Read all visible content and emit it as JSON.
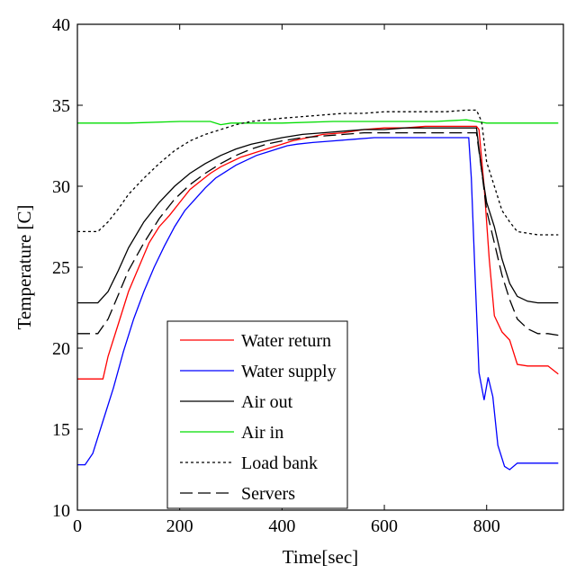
{
  "chart_data": {
    "type": "line",
    "title": "",
    "xlabel": "Time[sec]",
    "ylabel": "Temperature [C]",
    "xlim": [
      0,
      950
    ],
    "ylim": [
      10,
      40
    ],
    "xticks": [
      0,
      200,
      400,
      600,
      800
    ],
    "yticks": [
      10,
      15,
      20,
      25,
      30,
      35,
      40
    ],
    "grid": false,
    "legend_position": "lower-center",
    "series": [
      {
        "name": "Water return",
        "color": "#ff0000",
        "dash": "solid",
        "x": [
          0,
          50,
          60,
          80,
          100,
          120,
          140,
          160,
          180,
          200,
          220,
          240,
          260,
          280,
          300,
          320,
          340,
          360,
          380,
          400,
          420,
          450,
          480,
          520,
          560,
          600,
          640,
          680,
          720,
          760,
          780,
          785,
          795,
          805,
          815,
          830,
          845,
          860,
          880,
          900,
          920,
          940
        ],
        "y": [
          18.1,
          18.1,
          19.5,
          21.5,
          23.5,
          25.0,
          26.5,
          27.5,
          28.2,
          29.0,
          29.8,
          30.3,
          30.8,
          31.2,
          31.5,
          31.8,
          32.0,
          32.2,
          32.4,
          32.6,
          32.8,
          33.0,
          33.2,
          33.3,
          33.5,
          33.6,
          33.6,
          33.7,
          33.7,
          33.7,
          33.7,
          33.5,
          30.0,
          25.5,
          22.0,
          21.0,
          20.5,
          19.0,
          18.9,
          18.9,
          18.9,
          18.4
        ]
      },
      {
        "name": "Water supply",
        "color": "#0000ff",
        "dash": "solid",
        "x": [
          0,
          15,
          30,
          50,
          70,
          90,
          110,
          130,
          150,
          170,
          190,
          210,
          230,
          250,
          270,
          290,
          310,
          330,
          350,
          370,
          390,
          410,
          430,
          460,
          500,
          540,
          580,
          620,
          660,
          700,
          740,
          765,
          770,
          778,
          785,
          795,
          803,
          812,
          822,
          835,
          845,
          860,
          880,
          900,
          920,
          940
        ],
        "y": [
          12.8,
          12.8,
          13.5,
          15.5,
          17.5,
          19.8,
          21.8,
          23.5,
          25.0,
          26.3,
          27.5,
          28.5,
          29.2,
          29.9,
          30.5,
          30.9,
          31.3,
          31.6,
          31.9,
          32.1,
          32.3,
          32.5,
          32.6,
          32.7,
          32.8,
          32.9,
          33.0,
          33.0,
          33.0,
          33.0,
          33.0,
          33.0,
          30.5,
          24.0,
          18.5,
          16.8,
          18.2,
          17.0,
          14.0,
          12.7,
          12.5,
          12.9,
          12.9,
          12.9,
          12.9,
          12.9
        ]
      },
      {
        "name": "Air out",
        "color": "#000000",
        "dash": "solid",
        "x": [
          0,
          40,
          60,
          80,
          100,
          130,
          160,
          190,
          220,
          250,
          280,
          310,
          340,
          370,
          400,
          440,
          480,
          520,
          560,
          600,
          640,
          680,
          720,
          760,
          780,
          790,
          800,
          815,
          830,
          845,
          860,
          880,
          900,
          920,
          940
        ],
        "y": [
          22.8,
          22.8,
          23.5,
          24.8,
          26.2,
          27.8,
          29.0,
          30.0,
          30.8,
          31.4,
          31.9,
          32.3,
          32.6,
          32.8,
          33.0,
          33.2,
          33.3,
          33.4,
          33.5,
          33.5,
          33.6,
          33.6,
          33.6,
          33.6,
          33.6,
          31.0,
          29.0,
          27.5,
          25.5,
          24.0,
          23.2,
          22.9,
          22.8,
          22.8,
          22.8
        ]
      },
      {
        "name": "Air in",
        "color": "#00dd00",
        "dash": "solid",
        "x": [
          0,
          100,
          200,
          260,
          280,
          300,
          400,
          500,
          600,
          700,
          760,
          780,
          800,
          850,
          900,
          940
        ],
        "y": [
          33.9,
          33.9,
          34.0,
          34.0,
          33.8,
          33.9,
          33.9,
          34.0,
          34.0,
          34.0,
          34.1,
          34.0,
          33.9,
          33.9,
          33.9,
          33.9
        ]
      },
      {
        "name": "Load bank",
        "color": "#000000",
        "dash": "dotted",
        "x": [
          0,
          40,
          60,
          80,
          100,
          130,
          160,
          190,
          220,
          250,
          280,
          310,
          340,
          370,
          400,
          440,
          480,
          520,
          560,
          600,
          640,
          680,
          720,
          760,
          780,
          790,
          800,
          815,
          830,
          845,
          860,
          880,
          900,
          920,
          940
        ],
        "y": [
          27.2,
          27.2,
          27.8,
          28.6,
          29.5,
          30.5,
          31.4,
          32.2,
          32.8,
          33.2,
          33.5,
          33.8,
          34.0,
          34.1,
          34.2,
          34.3,
          34.4,
          34.5,
          34.5,
          34.6,
          34.6,
          34.6,
          34.6,
          34.7,
          34.7,
          34.0,
          31.5,
          30.0,
          28.5,
          27.8,
          27.2,
          27.1,
          27.0,
          27.0,
          27.0
        ]
      },
      {
        "name": "Servers",
        "color": "#000000",
        "dash": "dashed",
        "x": [
          0,
          40,
          60,
          80,
          100,
          130,
          160,
          190,
          220,
          250,
          280,
          310,
          340,
          370,
          400,
          440,
          480,
          520,
          560,
          600,
          640,
          680,
          720,
          760,
          780,
          790,
          800,
          815,
          830,
          845,
          860,
          880,
          900,
          920,
          940
        ],
        "y": [
          20.9,
          20.9,
          21.8,
          23.3,
          24.8,
          26.5,
          28.0,
          29.2,
          30.1,
          30.8,
          31.4,
          31.9,
          32.3,
          32.6,
          32.8,
          33.0,
          33.1,
          33.2,
          33.3,
          33.3,
          33.3,
          33.3,
          33.3,
          33.3,
          33.3,
          31.0,
          28.5,
          26.5,
          24.5,
          23.0,
          21.8,
          21.2,
          20.9,
          20.9,
          20.8
        ]
      }
    ]
  }
}
